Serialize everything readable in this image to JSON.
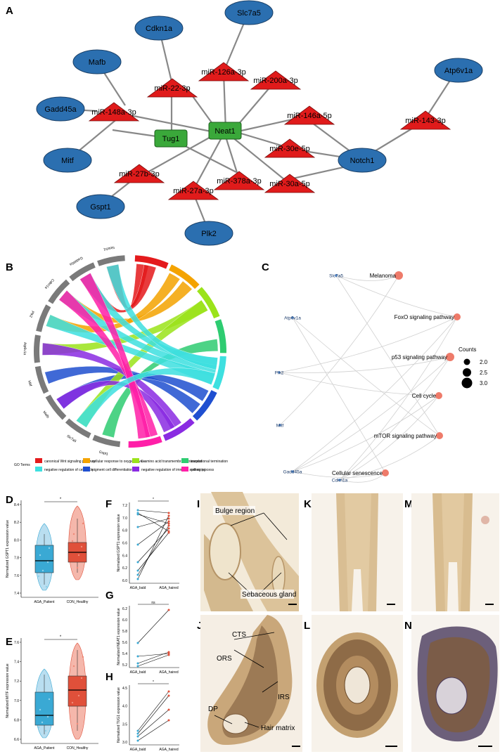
{
  "panels": [
    "A",
    "B",
    "C",
    "D",
    "E",
    "F",
    "G",
    "H",
    "I",
    "J",
    "K",
    "L",
    "M",
    "N"
  ],
  "network": {
    "genes": [
      "Slc7a5",
      "Cdkn1a",
      "Mafb",
      "Gadd45a",
      "Mitf",
      "Gspt1",
      "Plk2",
      "Notch1",
      "Atp6v1a"
    ],
    "lncrnas": [
      "Neat1",
      "Tug1"
    ],
    "mirnas": [
      "miR-126a-3p",
      "miR-22-3p",
      "miR-200a-3p",
      "miR-148a-3p",
      "miR-146a-5p",
      "miR-143-3p",
      "miR-30e-5p",
      "miR-27b-3p",
      "miR-378a-3p",
      "miR-30a-5p",
      "miR-27a-3p"
    ]
  },
  "chord": {
    "genes": [
      "Notch1",
      "Gadd45a",
      "Cdkn1a",
      "Plk2",
      "Atp6v1a",
      "Mitf",
      "Mafb",
      "Slc7a5",
      "Gspt1"
    ],
    "legend_title": "GO Terms",
    "terms": [
      {
        "label": "canonical Wnt signaling pathway",
        "color": "#e41a1c"
      },
      {
        "label": "cellular response to oxygen levels",
        "color": "#f4a300"
      },
      {
        "label": "L-amino acid transmembrane transport",
        "color": "#9be31a"
      },
      {
        "label": "translational termination",
        "color": "#2ecc71"
      },
      {
        "label": "negative regulation of cell cycle",
        "color": "#3ee0e0"
      },
      {
        "label": "pigment cell differentiation",
        "color": "#1f4fd0"
      },
      {
        "label": "negative regulation of immune system process",
        "color": "#8a2be2"
      },
      {
        "label": "cell aging",
        "color": "#ff1fa8"
      }
    ]
  },
  "kegg": {
    "genes": [
      "Slc7a5",
      "Atp6v1a",
      "Plk2",
      "Mitf",
      "Gadd45a",
      "Cdkn1a"
    ],
    "pathways": [
      "Melanoma",
      "FoxO signaling pathway",
      "p53 signaling pathway",
      "Cell cycle",
      "mTOR signaling pathway",
      "Cellular senescence"
    ],
    "legend_title": "Counts",
    "legend_values": [
      "2.0",
      "2.5",
      "3.0"
    ]
  },
  "boxplots": {
    "d": {
      "ylabel": "Normalized GSPT1 expression value",
      "yticks": [
        "8.4",
        "8.2",
        "8.0",
        "7.8",
        "7.6",
        "7.4"
      ],
      "groups": [
        "AGA_Patient",
        "CON_Healthy"
      ],
      "sig": "*"
    },
    "e": {
      "ylabel": "Normalized MITF expression value",
      "yticks": [
        "7.6",
        "7.4",
        "7.2",
        "7.0",
        "6.8",
        "6.6"
      ],
      "groups": [
        "AGA_Patient",
        "CON_Healthy"
      ],
      "sig": "*"
    }
  },
  "paired": {
    "f": {
      "ylabel": "Normalized GSPT1 expression value",
      "yticks": [
        "7.2",
        "7.0",
        "6.8",
        "6.6",
        "6.4",
        "6.2",
        "6.0"
      ],
      "groups": [
        "AGA_bald",
        "AGA_haired"
      ],
      "sig": "*"
    },
    "g": {
      "ylabel": "Normalized NEAT1 expression value",
      "yticks": [
        "6.2",
        "6.0",
        "5.8",
        "5.6",
        "5.4",
        "5.2"
      ],
      "groups": [
        "AGA_bald",
        "AGA_haired"
      ],
      "sig": "ns"
    },
    "h": {
      "ylabel": "Normalized TUG1 expression value",
      "yticks": [
        "4.5",
        "4.0",
        "3.5",
        "3.0"
      ],
      "groups": [
        "AGA_bald",
        "AGA_haired"
      ],
      "sig": "*"
    }
  },
  "histology": {
    "i_labels": [
      "Bulge region",
      "Sebaceous gland"
    ],
    "j_labels": [
      "CTS",
      "ORS",
      "IRS",
      "DP",
      "Hair matrix"
    ]
  }
}
